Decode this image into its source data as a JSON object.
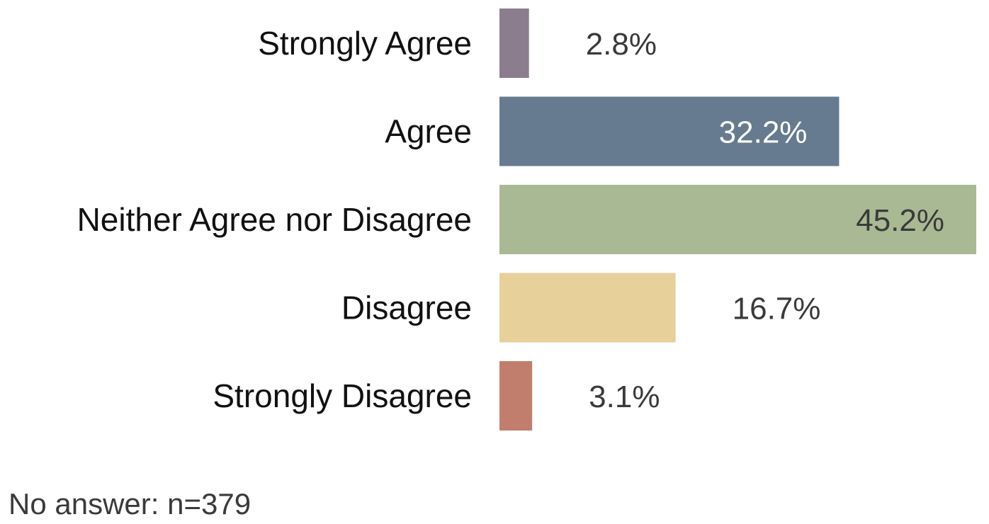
{
  "chart_data": {
    "type": "bar",
    "orientation": "horizontal",
    "categories": [
      "Strongly Agree",
      "Agree",
      "Neither Agree nor Disagree",
      "Disagree",
      "Strongly Disagree"
    ],
    "values": [
      2.8,
      32.2,
      45.2,
      16.7,
      3.1
    ],
    "value_labels": [
      "2.8%",
      "32.2%",
      "45.2%",
      "16.7%",
      "3.1%"
    ],
    "colors": [
      "#8b7d8d",
      "#667b8f",
      "#a9b994",
      "#e8d09a",
      "#c27e6d"
    ],
    "label_colors": [
      "#3a3a3a",
      "#ffffff",
      "#3a3a3a",
      "#3a3a3a",
      "#3a3a3a"
    ],
    "xlim": [
      0,
      45.2
    ],
    "grid": false,
    "legend": "none",
    "title": "",
    "xlabel": "",
    "ylabel": ""
  },
  "footnote": "No answer: n=379"
}
